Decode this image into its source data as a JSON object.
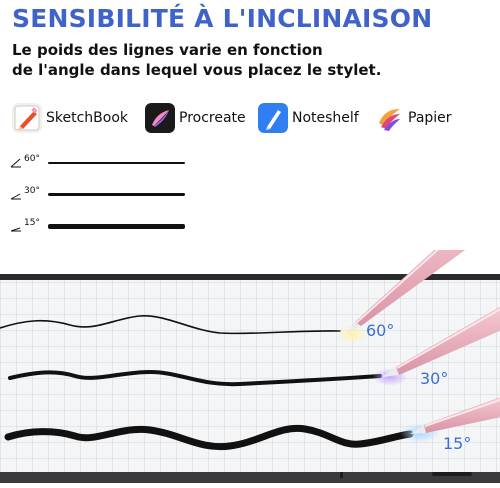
{
  "header": {
    "title": "SENSIBILITÉ À L'INCLINAISON",
    "subtitle_line1": "Le poids des lignes varie en fonction",
    "subtitle_line2": "de l'angle dans lequel vous placez le stylet."
  },
  "apps": [
    {
      "label": "SketchBook",
      "icon": "sketchbook-icon"
    },
    {
      "label": "Procreate",
      "icon": "procreate-icon"
    },
    {
      "label": "Noteshelf",
      "icon": "noteshelf-icon"
    },
    {
      "label": "Papier",
      "icon": "papier-icon"
    }
  ],
  "angle_legend": [
    {
      "label": "60°"
    },
    {
      "label": "30°"
    },
    {
      "label": "15°"
    }
  ],
  "scene": {
    "labels": [
      "60°",
      "30°",
      "15°"
    ]
  },
  "colors": {
    "title": "#3f63c9",
    "pen": "#f2c6cf",
    "angle_label": "#3a6fd0"
  }
}
